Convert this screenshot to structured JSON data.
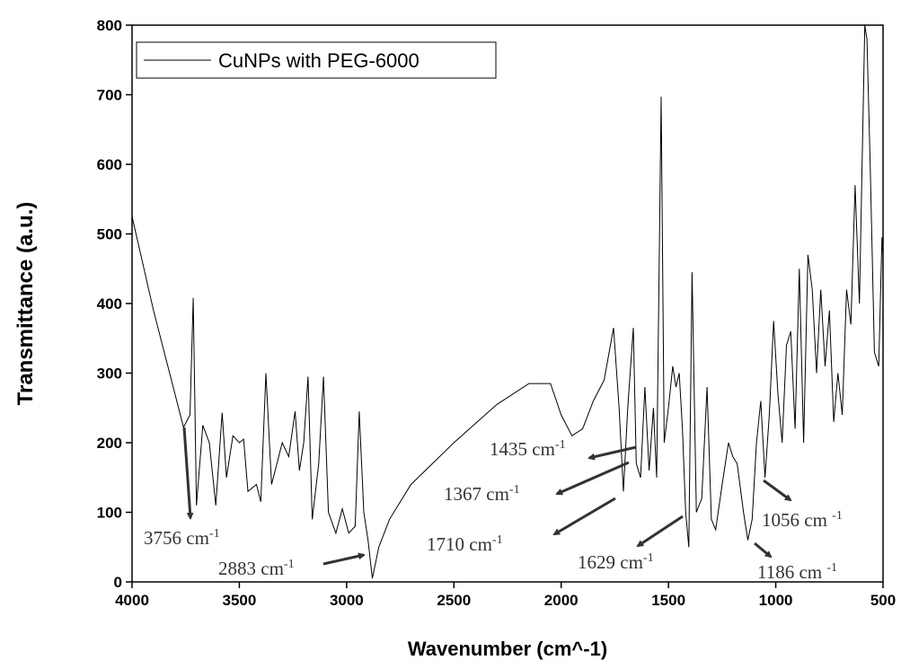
{
  "chart_data": {
    "type": "line",
    "xlabel": "Wavenumber (cm^-1)",
    "ylabel": "Transmittance (a.u.)",
    "xlim": [
      4000,
      500
    ],
    "ylim": [
      0,
      800
    ],
    "xticks": [
      4000,
      3500,
      3000,
      2500,
      2000,
      1500,
      1000,
      500
    ],
    "yticks": [
      0,
      100,
      200,
      300,
      400,
      500,
      600,
      700,
      800
    ],
    "legend": "upper left",
    "series": [
      {
        "name": "CuNPs with PEG-6000",
        "color": "#000000",
        "x": [
          4000,
          3900,
          3800,
          3760,
          3730,
          3715,
          3700,
          3670,
          3640,
          3610,
          3580,
          3560,
          3530,
          3500,
          3480,
          3460,
          3420,
          3400,
          3376,
          3350,
          3300,
          3270,
          3240,
          3220,
          3200,
          3180,
          3160,
          3130,
          3108,
          3085,
          3050,
          3020,
          2990,
          2960,
          2941,
          2920,
          2900,
          2880,
          2850,
          2800,
          2700,
          2500,
          2300,
          2150,
          2050,
          2000,
          1950,
          1900,
          1850,
          1800,
          1756,
          1730,
          1710,
          1690,
          1664,
          1650,
          1630,
          1610,
          1590,
          1570,
          1555,
          1534,
          1520,
          1500,
          1480,
          1465,
          1450,
          1435,
          1420,
          1405,
          1390,
          1370,
          1345,
          1320,
          1300,
          1280,
          1250,
          1220,
          1200,
          1180,
          1150,
          1130,
          1110,
          1090,
          1070,
          1050,
          1030,
          1010,
          990,
          970,
          950,
          930,
          910,
          890,
          870,
          850,
          830,
          810,
          790,
          770,
          750,
          730,
          710,
          690,
          670,
          650,
          630,
          610,
          600,
          585,
          575,
          560,
          540,
          520,
          505,
          500
        ],
        "values": [
          525,
          390,
          270,
          222,
          240,
          408,
          110,
          225,
          200,
          110,
          243,
          150,
          210,
          200,
          205,
          130,
          140,
          115,
          300,
          140,
          200,
          180,
          245,
          160,
          200,
          295,
          90,
          170,
          295,
          100,
          70,
          105,
          70,
          80,
          245,
          100,
          60,
          5,
          50,
          90,
          140,
          200,
          255,
          285,
          285,
          240,
          210,
          220,
          260,
          290,
          365,
          250,
          130,
          250,
          365,
          170,
          150,
          280,
          160,
          250,
          150,
          697,
          200,
          250,
          310,
          280,
          300,
          220,
          100,
          50,
          445,
          100,
          120,
          280,
          90,
          75,
          140,
          200,
          180,
          170,
          100,
          60,
          90,
          200,
          260,
          150,
          240,
          375,
          270,
          200,
          340,
          360,
          220,
          450,
          200,
          470,
          420,
          300,
          420,
          310,
          390,
          230,
          300,
          240,
          420,
          370,
          570,
          400,
          560,
          800,
          780,
          600,
          330,
          310,
          495,
          470
        ]
      }
    ],
    "annotations": [
      {
        "label": "3756 cm",
        "sup": "-1"
      },
      {
        "label": "2883 cm",
        "sup": "-1"
      },
      {
        "label": "1710 cm",
        "sup": "-1"
      },
      {
        "label": "1435 cm",
        "sup": "-1"
      },
      {
        "label": "1367 cm",
        "sup": "-1"
      },
      {
        "label": "1629 cm",
        "sup": "-1"
      },
      {
        "label": "1056 cm ",
        "sup": "-1"
      },
      {
        "label": "1186 cm ",
        "sup": "-1"
      }
    ]
  }
}
